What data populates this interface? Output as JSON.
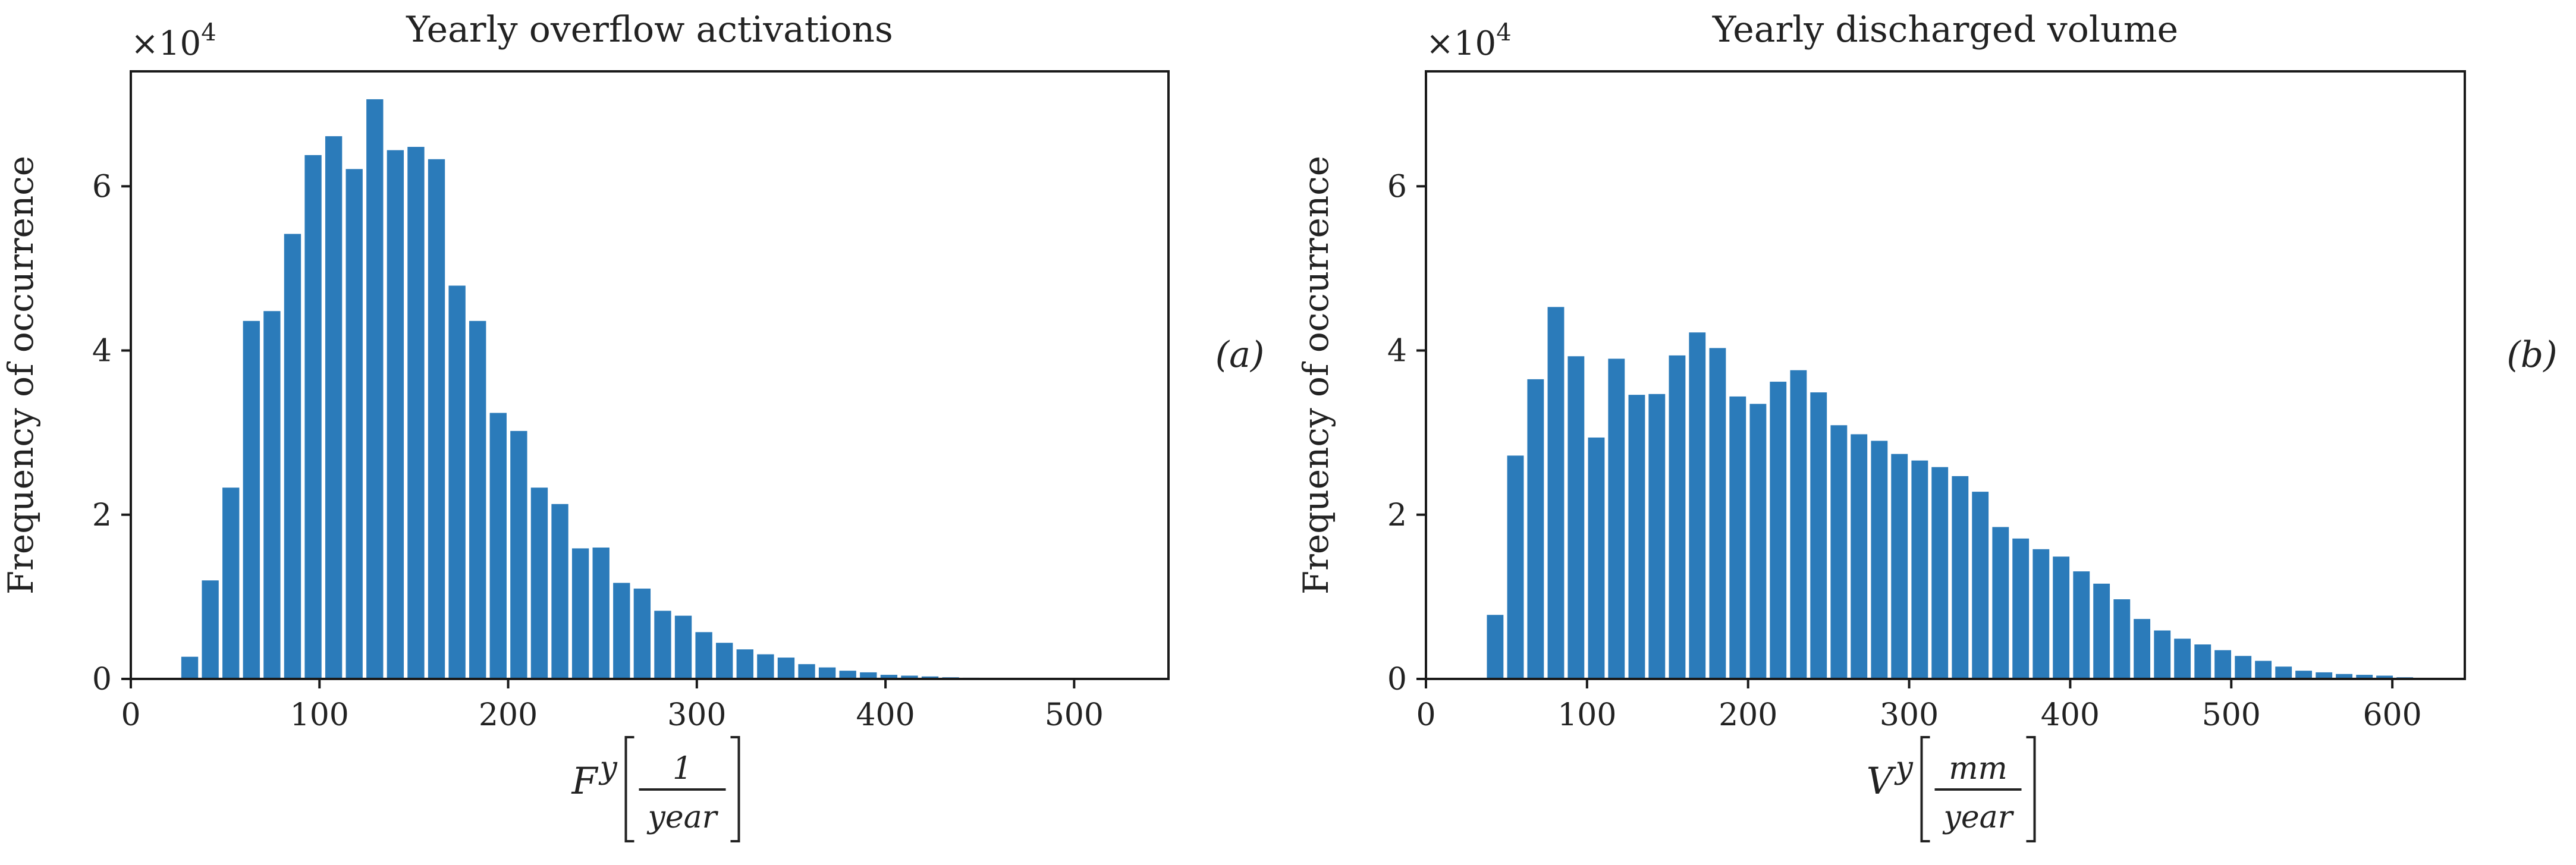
{
  "chart_data": [
    {
      "type": "bar",
      "panel_label": "(a)",
      "title": "Yearly overflow activations",
      "ylabel": "Frequency of occurrence",
      "xlabel": {
        "symbol": "F",
        "superscript": "y",
        "numerator": "1",
        "denominator": "year"
      },
      "y_multiplier_text": "×10",
      "y_multiplier_exponent": "4",
      "xlim": [
        0,
        550
      ],
      "ylim": [
        0,
        74000
      ],
      "xticks": [
        0,
        100,
        200,
        300,
        400,
        500
      ],
      "yticks": [
        0,
        20000,
        40000,
        60000
      ],
      "ytick_labels": [
        "0",
        "2",
        "4",
        "6"
      ],
      "bin_width": 10.9,
      "bar_color": "#2b7bba",
      "x": [
        32.2,
        43.1,
        54.0,
        64.9,
        75.8,
        86.7,
        97.6,
        108.5,
        119.4,
        130.3,
        141.2,
        152.1,
        163.0,
        173.9,
        184.8,
        195.7,
        206.6,
        217.5,
        228.4,
        239.3,
        250.2,
        261.1,
        272.0,
        282.9,
        293.8,
        304.7,
        315.6,
        326.5,
        337.4,
        348.3,
        359.2,
        370.1,
        381.0,
        391.9,
        402.8,
        413.7,
        424.6,
        435.5,
        446.4,
        457.3,
        468.2,
        479.1,
        490.0,
        500.9,
        511.8,
        522.7
      ],
      "values": [
        2700,
        12000,
        23300,
        43600,
        44800,
        54200,
        63800,
        66100,
        62100,
        70600,
        64400,
        64800,
        63300,
        47900,
        43600,
        32400,
        30200,
        23300,
        21300,
        15900,
        16000,
        11700,
        11000,
        8300,
        7700,
        5700,
        4400,
        3600,
        3000,
        2600,
        1800,
        1400,
        1000,
        800,
        500,
        400,
        300,
        200,
        150,
        100,
        80,
        50,
        40,
        30,
        20,
        10
      ]
    },
    {
      "type": "bar",
      "panel_label": "(b)",
      "title": "Yearly discharged volume",
      "ylabel": "Frequency of occurrence",
      "xlabel": {
        "symbol": "V",
        "superscript": "y",
        "numerator": "mm",
        "denominator": "year"
      },
      "y_multiplier_text": "×10",
      "y_multiplier_exponent": "4",
      "xlim": [
        0,
        645
      ],
      "ylim": [
        0,
        74000
      ],
      "xticks": [
        0,
        100,
        200,
        300,
        400,
        500,
        600
      ],
      "yticks": [
        0,
        20000,
        40000,
        60000
      ],
      "ytick_labels": [
        "0",
        "2",
        "4",
        "6"
      ],
      "bin_width": 12.55,
      "bar_color": "#2b7bba",
      "x": [
        44.1,
        56.7,
        69.2,
        81.8,
        94.3,
        106.9,
        119.4,
        132.0,
        144.5,
        157.1,
        169.6,
        182.2,
        194.7,
        207.3,
        219.8,
        232.4,
        244.9,
        257.5,
        270.0,
        282.6,
        295.1,
        307.7,
        320.2,
        332.8,
        345.3,
        357.9,
        370.4,
        383.0,
        395.5,
        408.1,
        420.6,
        433.2,
        445.7,
        458.3,
        470.8,
        483.4,
        495.9,
        508.5,
        521.0,
        533.6,
        546.1,
        558.7,
        571.2,
        583.8,
        596.3,
        608.9
      ],
      "values": [
        7800,
        27200,
        36500,
        45300,
        39300,
        29400,
        39000,
        34600,
        34700,
        39400,
        42200,
        40300,
        34400,
        33500,
        36200,
        37600,
        34900,
        30900,
        29800,
        29000,
        27400,
        26600,
        25800,
        24700,
        22800,
        18500,
        17100,
        15800,
        14900,
        13100,
        11600,
        9700,
        7300,
        5900,
        4900,
        4200,
        3500,
        2800,
        2200,
        1500,
        1000,
        800,
        600,
        500,
        400,
        200
      ]
    }
  ]
}
